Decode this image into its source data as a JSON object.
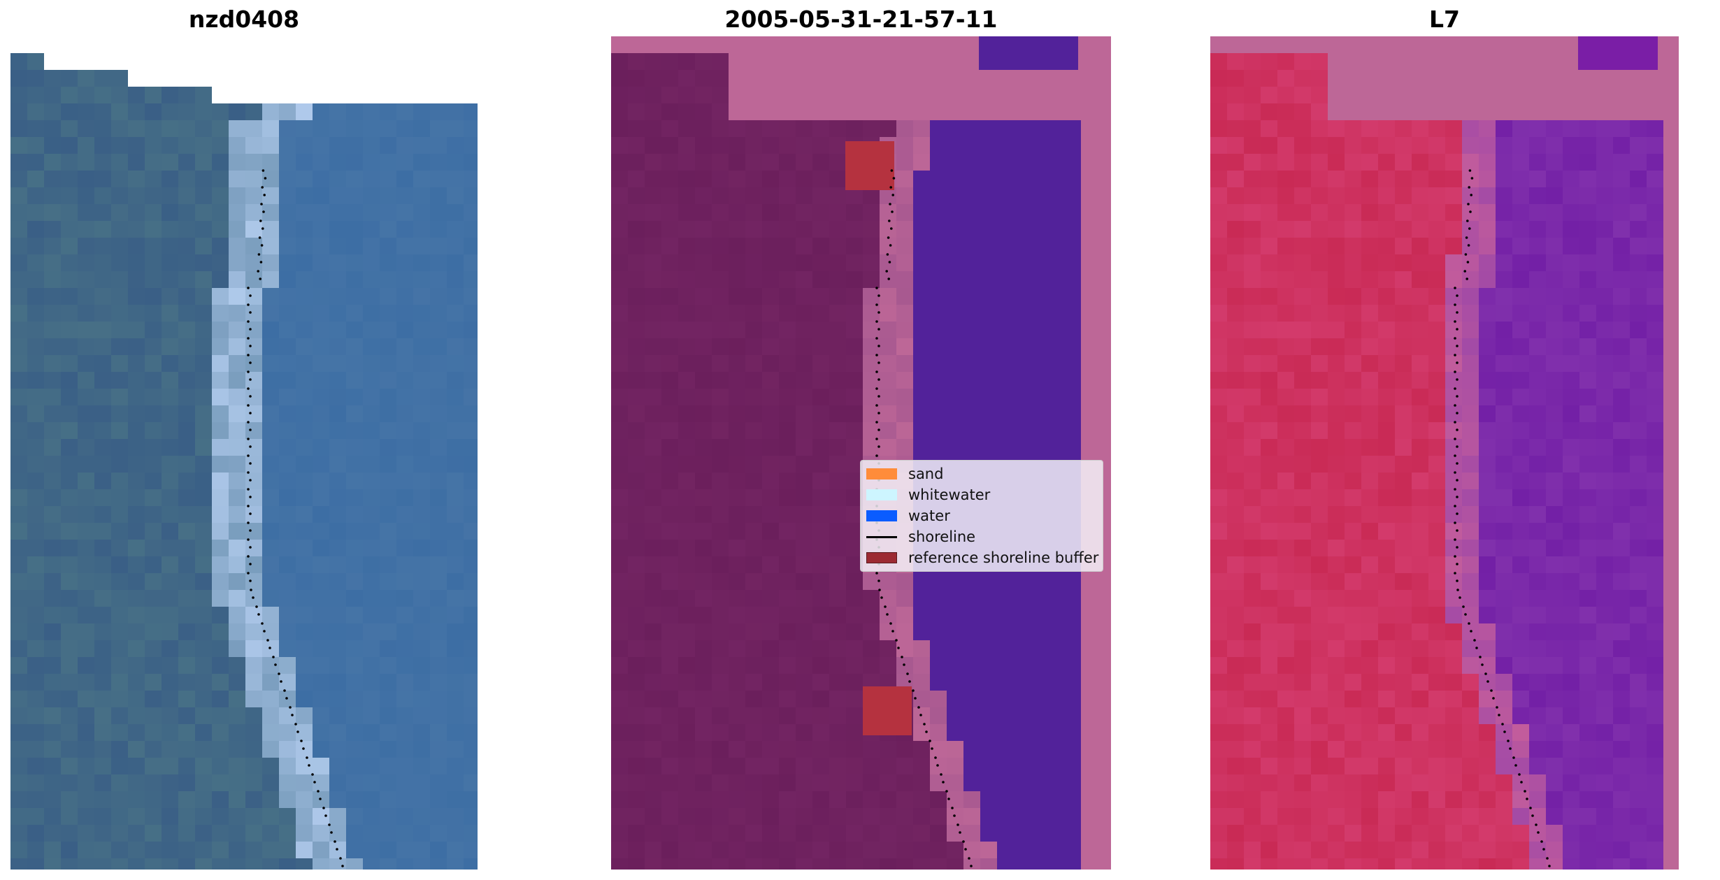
{
  "panels": {
    "rgb_title": "nzd0408",
    "classification_title": "2005-05-31-21-57-11",
    "index_title": "L7"
  },
  "legend": {
    "items": [
      {
        "label": "sand",
        "color": "#ff8c3a",
        "kind": "patch"
      },
      {
        "label": "whitewater",
        "color": "#cdf5ff",
        "kind": "patch"
      },
      {
        "label": "water",
        "color": "#0a5cff",
        "kind": "patch"
      },
      {
        "label": "shoreline",
        "color": "#000000",
        "kind": "line"
      },
      {
        "label": "reference shoreline buffer",
        "color": "#9c2a32",
        "kind": "patch"
      }
    ]
  },
  "colors": {
    "rgb_land": "#3a5f86",
    "rgb_surf": "#b7d0f2",
    "class_land": "#6b1f5c",
    "class_water": "#52229a",
    "class_nodata": "#bd6797",
    "class_buffer": "#b5323f",
    "index_land": "#c92a55",
    "index_water": "#7320a6",
    "index_nodata": "#bd6797",
    "shoreline_dots": "#000000"
  }
}
